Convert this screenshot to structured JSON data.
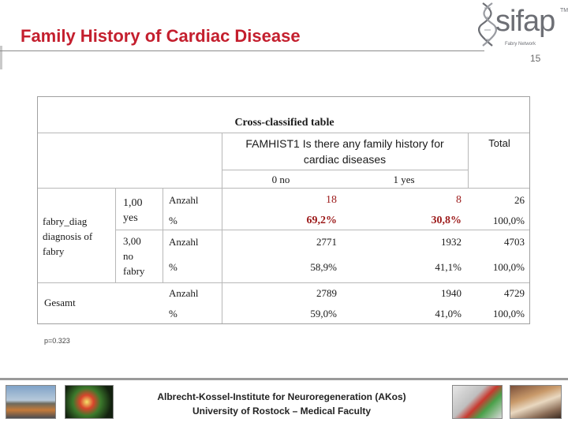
{
  "slide": {
    "title": "Family History of Cardiac Disease",
    "page_number": "15",
    "footnote": "p=0.323"
  },
  "logo": {
    "name": "sifap",
    "tm": "TM",
    "subtitle": "Fabry Network"
  },
  "table": {
    "title": "Cross-classified table",
    "column_header": "FAMHIST1 Is there any family history for cardiac diseases",
    "column_header_line1": "FAMHIST1 Is there any family history for",
    "column_header_line2": "cardiac diseases",
    "col_no": "0 no",
    "col_yes": "1 yes",
    "col_total": "Total",
    "row_var_line1": "fabry_diag",
    "row_var_line2": "diagnosis of",
    "row_var_line3": "fabry",
    "group1_line1": "1,00",
    "group1_line2": "yes",
    "group2_line1": "3,00",
    "group2_line2": "no",
    "group2_line3": "fabry",
    "total_label": "Gesamt",
    "rows": [
      {
        "stat": "Anzahl",
        "no": "18",
        "yes": "8",
        "total": "26"
      },
      {
        "stat": "%",
        "no": "69,2%",
        "yes": "30,8%",
        "total": "100,0%"
      },
      {
        "stat": "Anzahl",
        "no": "2771",
        "yes": "1932",
        "total": "4703"
      },
      {
        "stat": "%",
        "no": "58,9%",
        "yes": "41,1%",
        "total": "100,0%"
      },
      {
        "stat": "Anzahl",
        "no": "2789",
        "yes": "1940",
        "total": "4729"
      },
      {
        "stat": "%",
        "no": "59,0%",
        "yes": "41,0%",
        "total": "100,0%"
      }
    ]
  },
  "footer": {
    "line1": "Albrecht-Kossel-Institute for Neuroregeneration (AKos)",
    "line2": "University of Rostock – Medical Faculty"
  },
  "colors": {
    "title": "#c41f2e",
    "highlight": "#9c1a1a"
  }
}
